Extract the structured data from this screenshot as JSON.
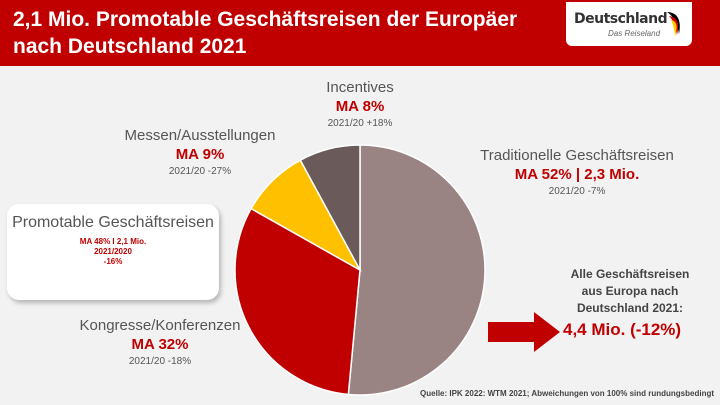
{
  "header": {
    "title": "2,1 Mio. Promotable Geschäftsreisen der Europäer nach Deutschland 2021",
    "logo_main": "Deutschland",
    "logo_sub": "Das Reiseland"
  },
  "chart_data": {
    "type": "pie",
    "title": "2,1 Mio. Promotable Geschäftsreisen der Europäer nach Deutschland 2021",
    "slices": [
      {
        "label": "Traditionelle Geschäftsreisen",
        "value": 52,
        "share_text": "MA 52% | 2,3 Mio.",
        "change_text": "2021/20 -7%",
        "color": "#9a8383"
      },
      {
        "label": "Kongresse/Konferenzen",
        "value": 32,
        "share_text": "MA 32%",
        "change_text": "2021/20 -18%",
        "color": "#c00000"
      },
      {
        "label": "Messen/Ausstellungen",
        "value": 9,
        "share_text": "MA 9%",
        "change_text": "2021/20 -27%",
        "color": "#ffc000"
      },
      {
        "label": "Incentives",
        "value": 8,
        "share_text": "MA 8%",
        "change_text": "2021/20 +18%",
        "color": "#6b5a5a"
      }
    ]
  },
  "promotable": {
    "title": "Promotable Geschäftsreisen",
    "line1": "MA 48% I 2,1 Mio.",
    "line2": "2021/2020",
    "line3": "-16%"
  },
  "total": {
    "note": "Alle Geschäftsreisen aus Europa nach Deutschland 2021:",
    "value": "4,4 Mio. (-12%)"
  },
  "source": "Quelle: IPK 2022: WTM 2021; Abweichungen von 100% sind rundungsbedingt",
  "colors": {
    "accent": "#c00000",
    "background": "#f2f2f2"
  }
}
